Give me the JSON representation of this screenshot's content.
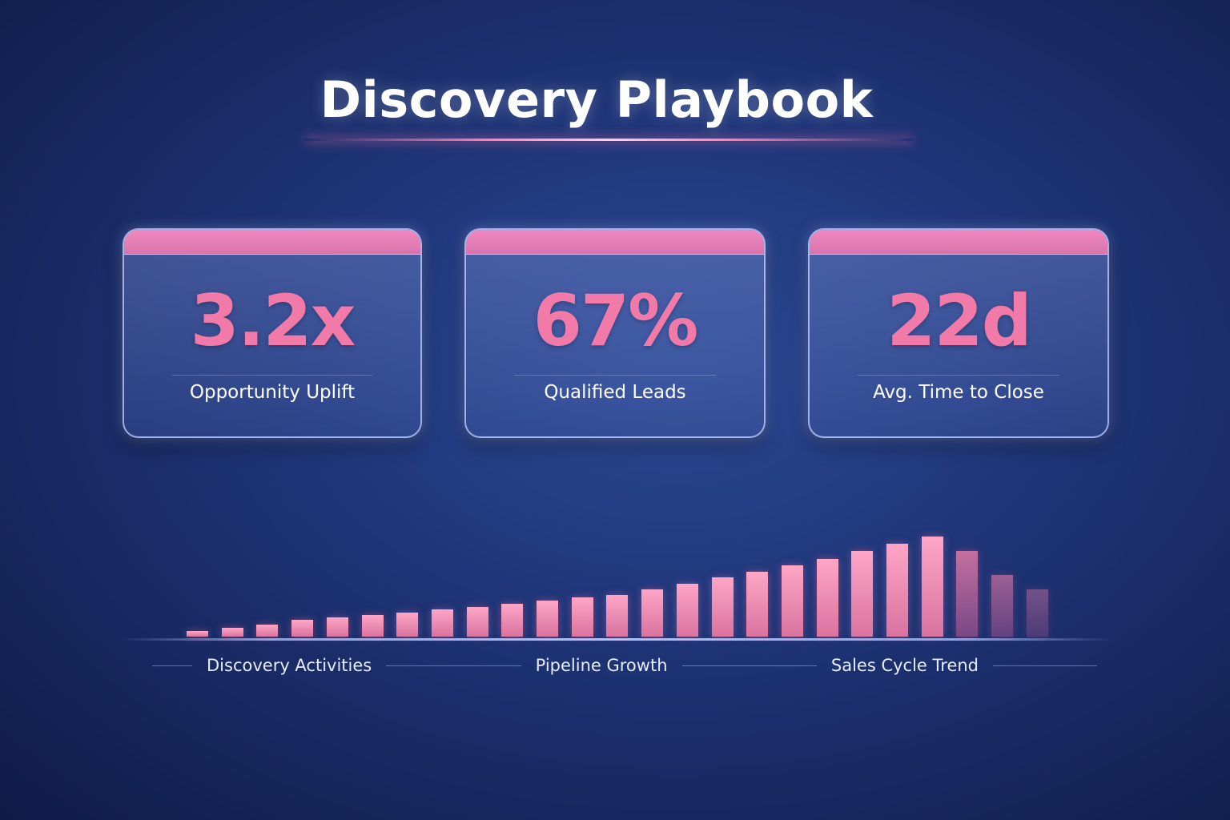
{
  "title": "Discovery Playbook",
  "colors": {
    "accent": "#f27aa8",
    "background": "#1f3578"
  },
  "cards": [
    {
      "value": "3.2x",
      "label": "Opportunity Uplift"
    },
    {
      "value": "67%",
      "label": "Qualified Leads"
    },
    {
      "value": "22d",
      "label": "Avg. Time to Close"
    }
  ],
  "chart_data": {
    "type": "bar",
    "relative_values": [
      6,
      9,
      12,
      17,
      19,
      22,
      24,
      27,
      30,
      33,
      36,
      39,
      42,
      47,
      53,
      59,
      65,
      71,
      78,
      86,
      93,
      100,
      86,
      62,
      47
    ]
  },
  "legend": [
    "Discovery Activities",
    "Pipeline Growth",
    "Sales Cycle Trend"
  ]
}
